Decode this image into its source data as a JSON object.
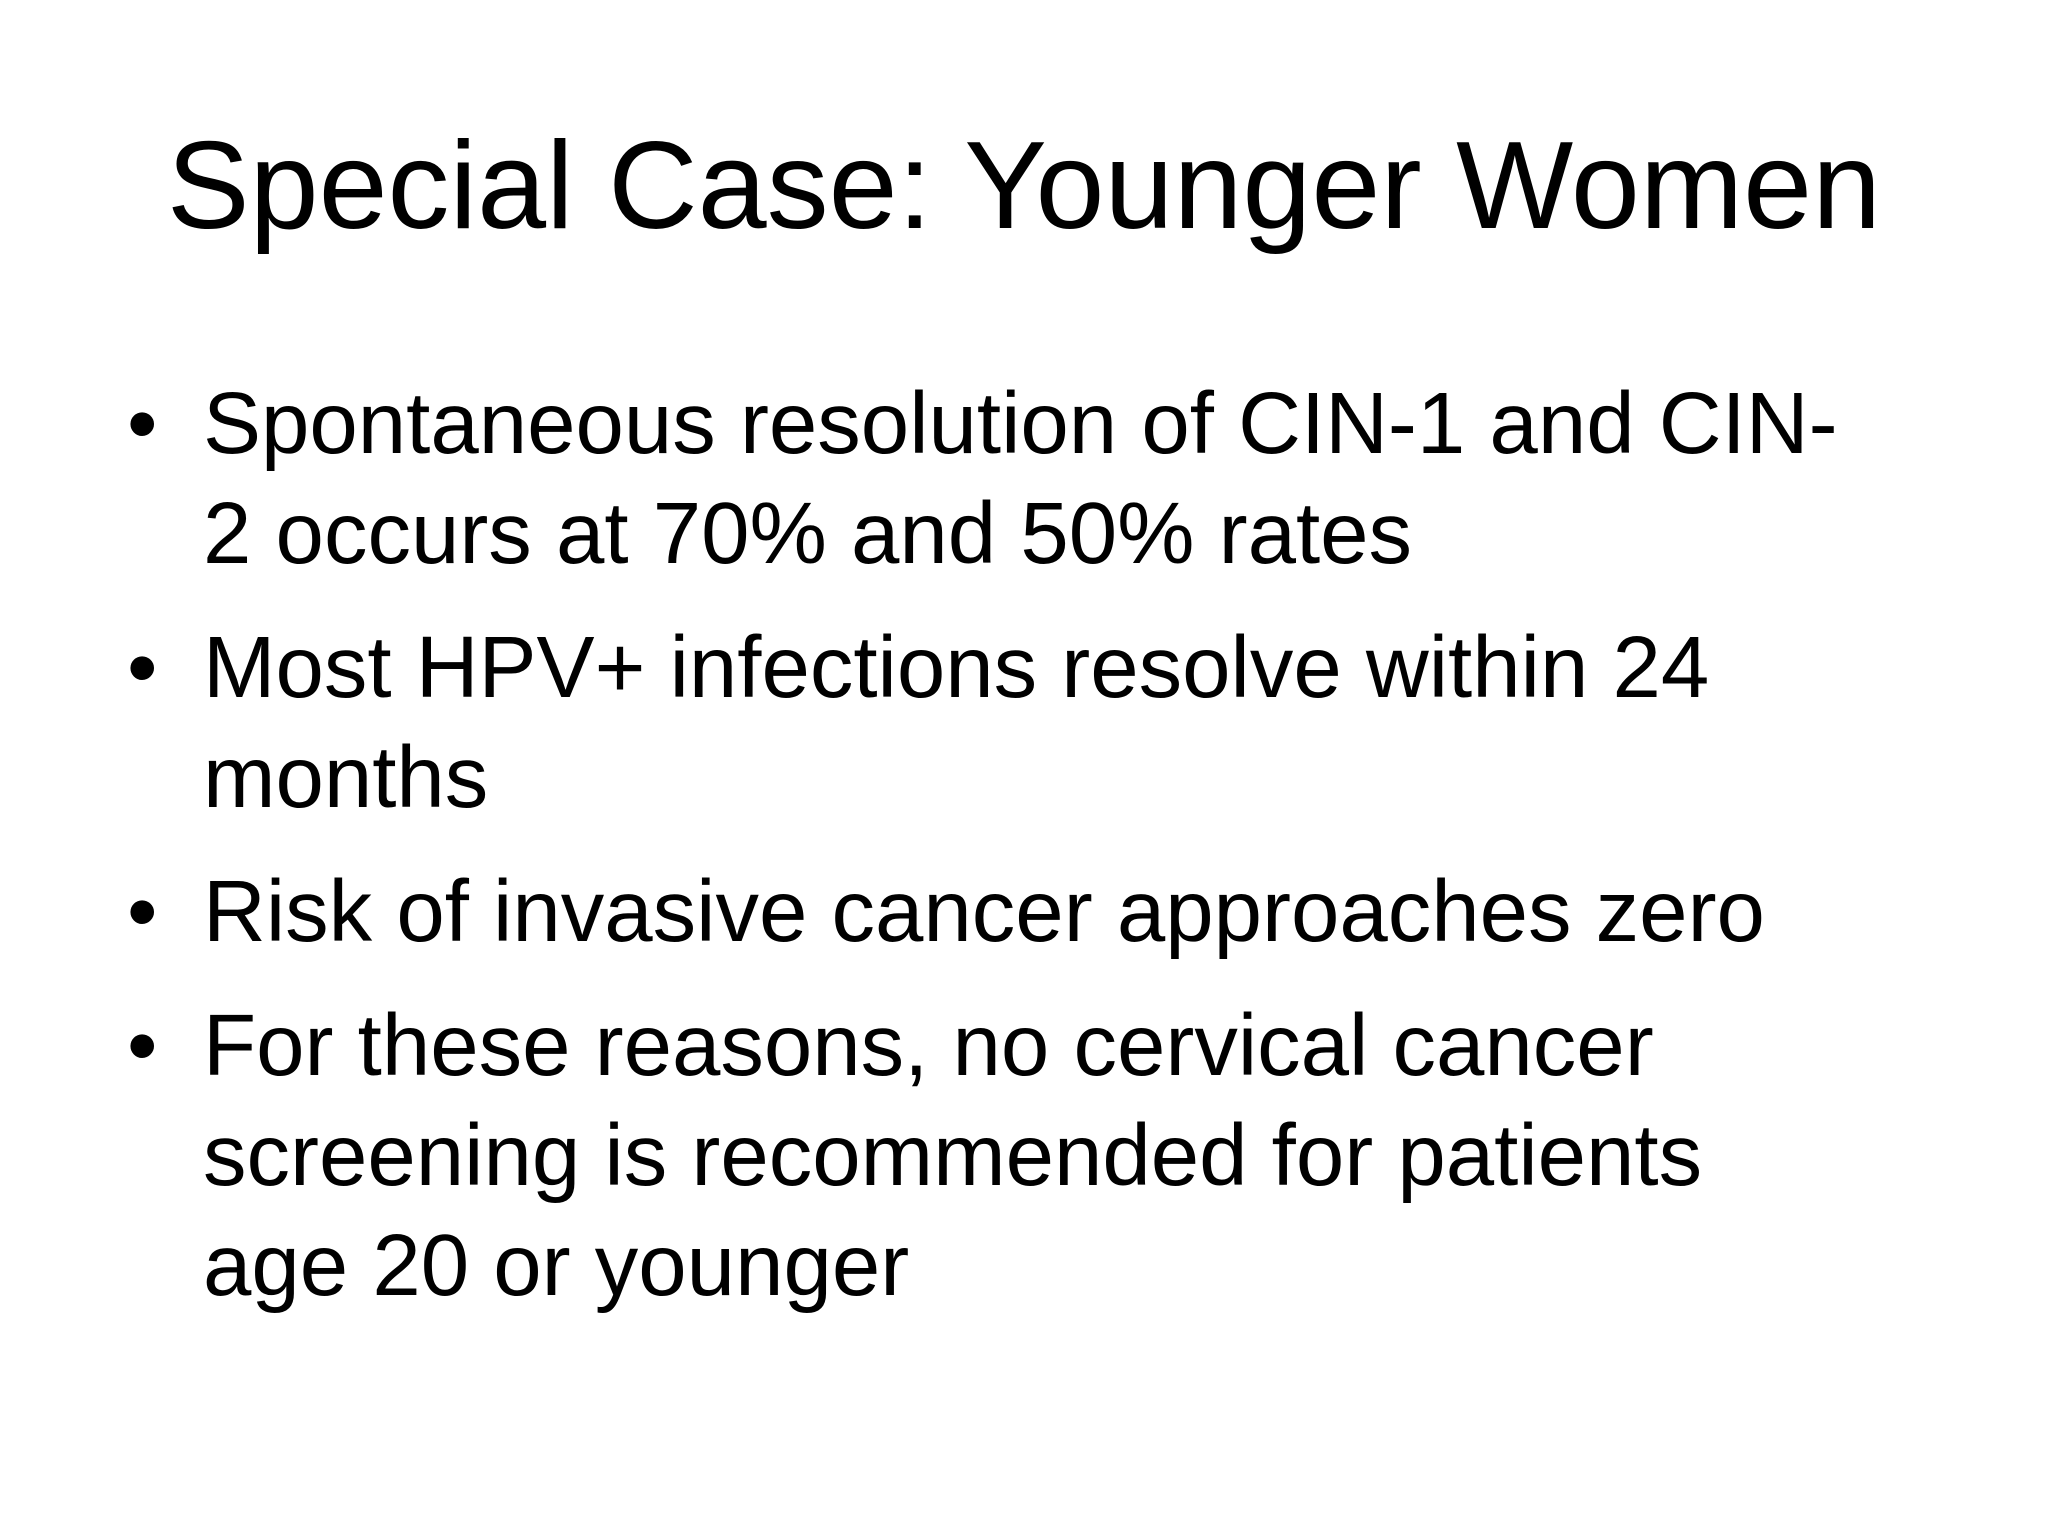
{
  "slide": {
    "title": "Special Case: Younger Women",
    "bullet_glyph": "•",
    "bullets": [
      "Spontaneous resolution of CIN-1 and CIN-\n2 occurs at 70% and 50% rates",
      "Most HPV+ infections resolve within 24\nmonths",
      "Risk of invasive cancer approaches zero",
      "For these reasons, no cervical cancer\nscreening is recommended for patients\nage 20 or younger"
    ],
    "colors": {
      "background": "#ffffff",
      "text": "#000000"
    }
  }
}
